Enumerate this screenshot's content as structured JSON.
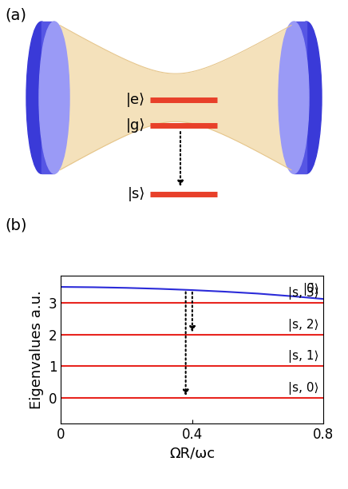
{
  "chart_data": {
    "type": "line",
    "x_label": "ΩR/ωc",
    "y_label": "Eigenvalues a.u.",
    "x": [
      0,
      0.1,
      0.2,
      0.3,
      0.4,
      0.5,
      0.6,
      0.7,
      0.8
    ],
    "series": [
      {
        "name": "|0̃⟩",
        "color": "#2b2bd9",
        "values": [
          3.5,
          3.49,
          3.47,
          3.44,
          3.4,
          3.35,
          3.29,
          3.21,
          3.12
        ]
      },
      {
        "name": "|s, 3⟩",
        "color": "#e8251f",
        "values": [
          3,
          3,
          3,
          3,
          3,
          3,
          3,
          3,
          3
        ]
      },
      {
        "name": "|s, 2⟩",
        "color": "#e8251f",
        "values": [
          2,
          2,
          2,
          2,
          2,
          2,
          2,
          2,
          2
        ]
      },
      {
        "name": "|s, 1⟩",
        "color": "#e8251f",
        "values": [
          1,
          1,
          1,
          1,
          1,
          1,
          1,
          1,
          1
        ]
      },
      {
        "name": "|s, 0⟩",
        "color": "#e8251f",
        "values": [
          0,
          0,
          0,
          0,
          0,
          0,
          0,
          0,
          0
        ]
      }
    ],
    "arrows": [
      {
        "x": 0.38,
        "to": 0
      },
      {
        "x": 0.4,
        "to": 2
      }
    ],
    "xlim": [
      0,
      0.8
    ],
    "xticks": [
      0,
      0.4,
      0.8
    ],
    "ylim": [
      -0.8,
      3.85
    ],
    "yticks": [
      0,
      1,
      2,
      3
    ],
    "grid": false
  },
  "panel_labels": {
    "a": "(a)",
    "b": "(b)"
  },
  "diagram": {
    "levels": [
      {
        "label": "|e⟩"
      },
      {
        "label": "|g⟩"
      },
      {
        "label": "|s⟩"
      }
    ]
  }
}
